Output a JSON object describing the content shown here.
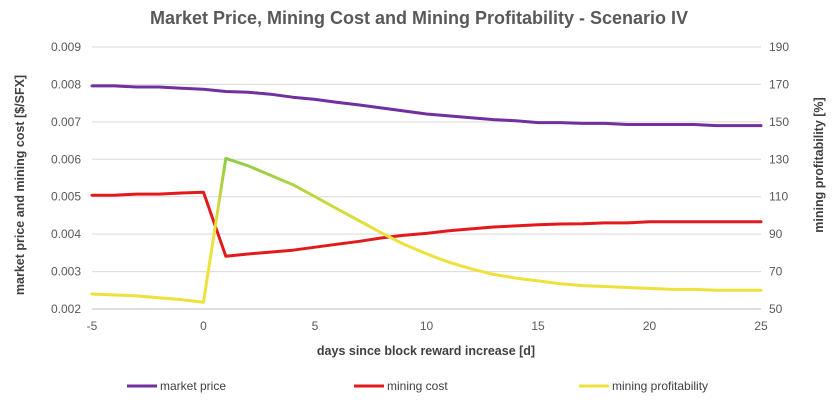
{
  "chart_data": {
    "type": "line",
    "title": "Market Price, Mining Cost and Mining Profitability - Scenario IV",
    "xlabel": "days since block reward increase [d]",
    "ylabel_left": "market price and mining cost [$/SFX]",
    "ylabel_right": "mining profitability [%]",
    "xlim": [
      -5,
      25
    ],
    "x_ticks": [
      "-5",
      "0",
      "5",
      "10",
      "15",
      "20",
      "25"
    ],
    "ylim_left": [
      0.002,
      0.009
    ],
    "y_ticks_left": [
      "0.002",
      "0.003",
      "0.004",
      "0.005",
      "0.006",
      "0.007",
      "0.008",
      "0.009"
    ],
    "ylim_right": [
      50,
      190
    ],
    "y_ticks_right": [
      "50",
      "70",
      "90",
      "110",
      "130",
      "150",
      "170",
      "190"
    ],
    "grid": "horizontal",
    "legend_position": "bottom",
    "series": [
      {
        "name": "market price",
        "axis": "left",
        "color": "#7030A0",
        "x": [
          -5,
          -4,
          -3,
          -2,
          -1,
          0,
          1,
          2,
          3,
          4,
          5,
          6,
          7,
          8,
          9,
          10,
          11,
          12,
          13,
          14,
          15,
          16,
          17,
          18,
          19,
          20,
          21,
          22,
          23,
          24,
          25
        ],
        "values": [
          0.00796,
          0.00796,
          0.00793,
          0.00793,
          0.0079,
          0.00787,
          0.00781,
          0.00779,
          0.00774,
          0.00766,
          0.0076,
          0.00752,
          0.00745,
          0.00737,
          0.00729,
          0.00721,
          0.00716,
          0.00711,
          0.00706,
          0.00703,
          0.00698,
          0.00698,
          0.00696,
          0.00696,
          0.00693,
          0.00693,
          0.00693,
          0.00693,
          0.0069,
          0.0069,
          0.0069
        ]
      },
      {
        "name": "mining cost",
        "axis": "left",
        "color": "#E31A1C",
        "x": [
          -5,
          -4,
          -3,
          -2,
          -1,
          0,
          1,
          2,
          3,
          4,
          5,
          6,
          7,
          8,
          9,
          10,
          11,
          12,
          13,
          14,
          15,
          16,
          17,
          18,
          19,
          20,
          21,
          22,
          23,
          24,
          25
        ],
        "values": [
          0.00504,
          0.00504,
          0.00507,
          0.00507,
          0.0051,
          0.00512,
          0.00341,
          0.00347,
          0.00352,
          0.00357,
          0.00365,
          0.00373,
          0.00381,
          0.0039,
          0.00397,
          0.00402,
          0.00409,
          0.00414,
          0.00419,
          0.00422,
          0.00425,
          0.00427,
          0.00428,
          0.0043,
          0.0043,
          0.00433,
          0.00433,
          0.00433,
          0.00433,
          0.00433,
          0.00433
        ]
      },
      {
        "name": "mining profitability",
        "axis": "right",
        "color": "#EFE13C",
        "x": [
          -5,
          -4,
          -3,
          -2,
          -1,
          0,
          1,
          2,
          3,
          4,
          5,
          6,
          7,
          8,
          9,
          10,
          11,
          12,
          13,
          14,
          15,
          16,
          17,
          18,
          19,
          20,
          21,
          22,
          23,
          24,
          25
        ],
        "values": [
          58,
          57.5,
          57,
          56,
          55,
          53.6,
          130.5,
          126.5,
          121.5,
          116.5,
          110,
          103.5,
          97,
          90.5,
          84.5,
          79.5,
          75,
          71.5,
          68.5,
          66.5,
          65,
          63.5,
          62.5,
          62,
          61.5,
          61,
          60.5,
          60.5,
          60,
          60,
          60
        ]
      }
    ]
  }
}
